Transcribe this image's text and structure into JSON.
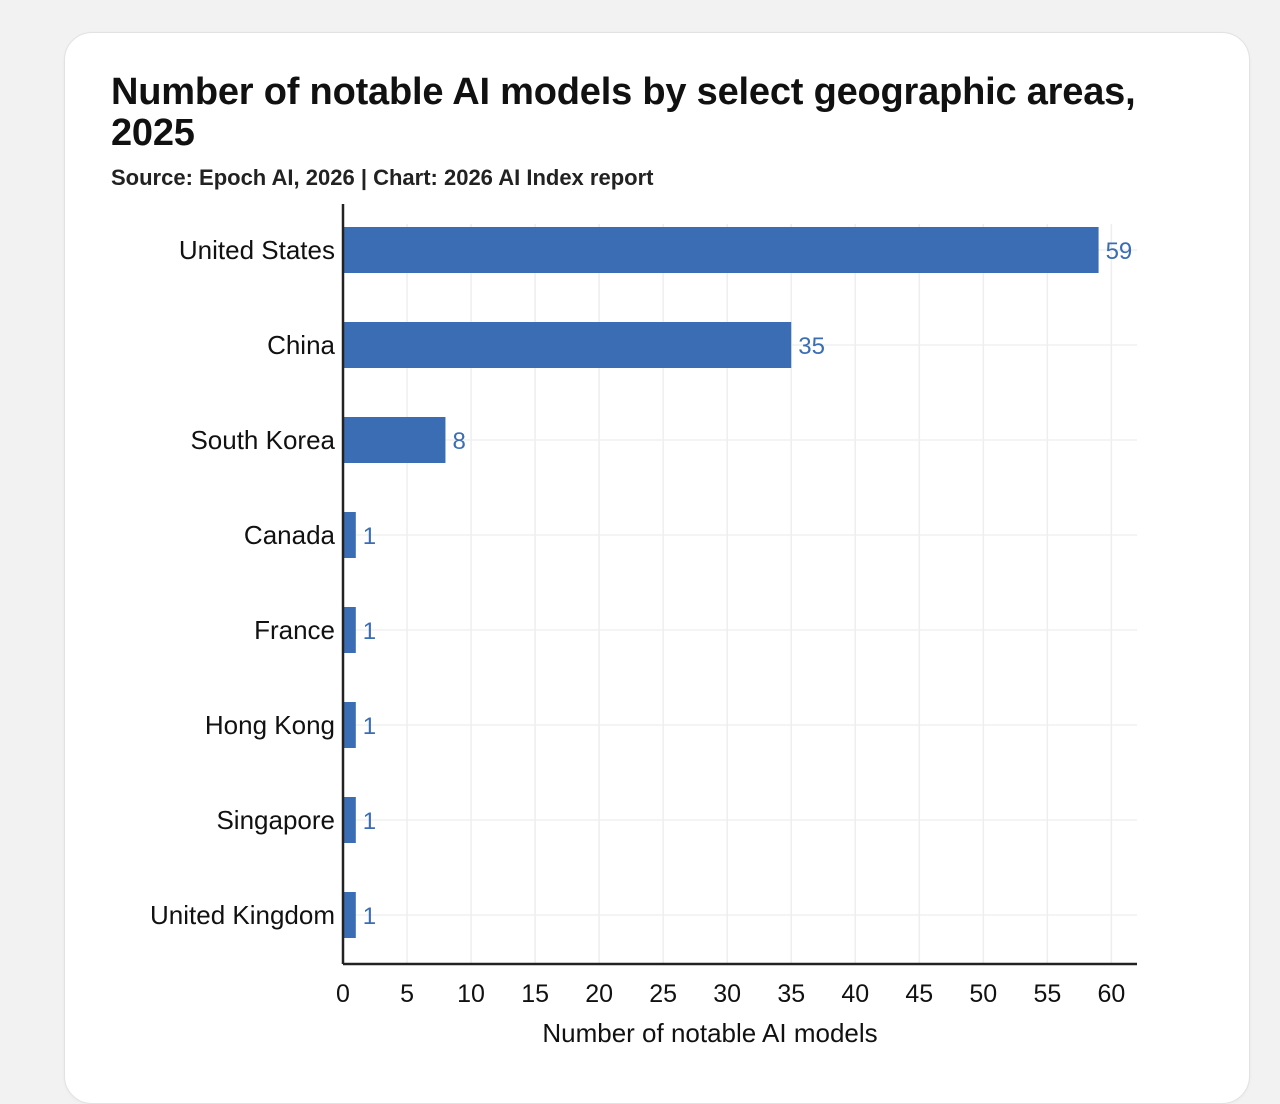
{
  "colors": {
    "bar": "#3b6db5",
    "value_label": "#3b6db5",
    "grid": "#eeeeee",
    "axis": "#222222"
  },
  "chart_data": {
    "type": "bar",
    "orientation": "horizontal",
    "title": "Number of notable AI models by select geographic areas, 2025",
    "subtitle": "Source: Epoch AI, 2026 | Chart: 2026 AI Index report",
    "categories": [
      "United States",
      "China",
      "South Korea",
      "Canada",
      "France",
      "Hong Kong",
      "Singapore",
      "United Kingdom"
    ],
    "values": [
      59,
      35,
      8,
      1,
      1,
      1,
      1,
      1
    ],
    "xlabel": "Number of notable AI models",
    "ylabel": "",
    "xlim": [
      0,
      62
    ],
    "xticks": [
      0,
      5,
      10,
      15,
      20,
      25,
      30,
      35,
      40,
      45,
      50,
      55,
      60
    ],
    "grid": true,
    "data_labels": true
  }
}
